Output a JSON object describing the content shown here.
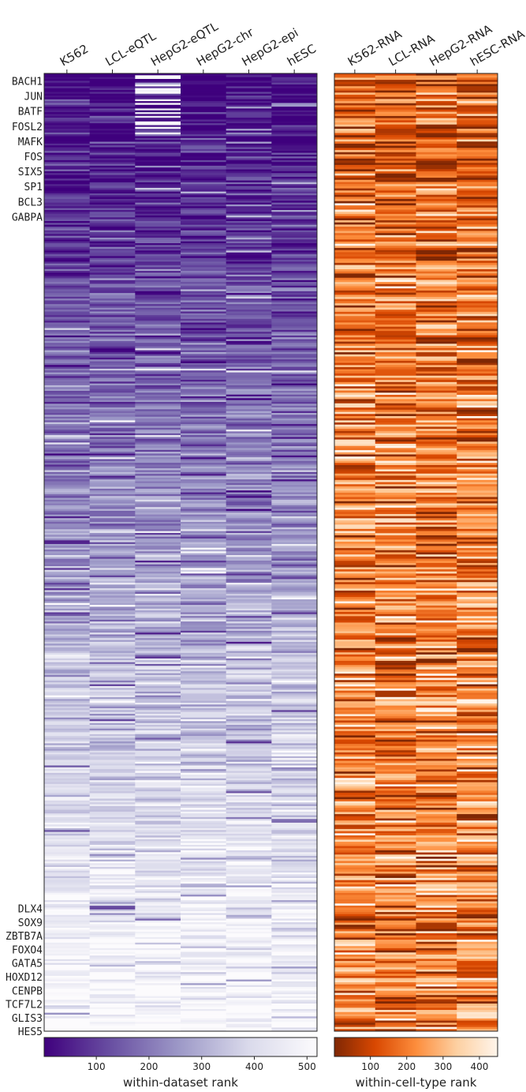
{
  "chart_data": [
    {
      "type": "heatmap",
      "columns": [
        "K562",
        "LCL-eQTL",
        "HepG2-eQTL",
        "HepG2-chr",
        "HepG2-epi",
        "hESC"
      ],
      "top_row_labels": [
        "BACH1",
        "JUN",
        "BATF",
        "FOSL2",
        "MAFK",
        "FOS",
        "SIX5",
        "SP1",
        "BCL3",
        "GABPA"
      ],
      "bottom_row_labels": [
        "DLX4",
        "SOX9",
        "ZBTB7A",
        "FOXO4",
        "GATA5",
        "HOXD12",
        "CENPB",
        "TCF7L2",
        "GLIS3",
        "HES5"
      ],
      "n_rows": 519,
      "colormap": "Purples_r",
      "colors": {
        "low": "#3f007d",
        "mid": "#9e9ac8",
        "high": "#fcfbfd"
      },
      "value_range": [
        1,
        519
      ],
      "colorbar": {
        "label": "within-dataset rank",
        "ticks": [
          100,
          200,
          300,
          400,
          500
        ]
      }
    },
    {
      "type": "heatmap",
      "columns": [
        "K562-RNA",
        "LCL-RNA",
        "HepG2-RNA",
        "hESC-RNA"
      ],
      "n_rows": 450,
      "colormap": "Oranges_r",
      "colors": {
        "low": "#7f2704",
        "mid": "#fd8d3c",
        "high": "#fff5eb"
      },
      "value_range": [
        1,
        450
      ],
      "colorbar": {
        "label": "within-cell-type rank",
        "ticks": [
          100,
          200,
          300,
          400
        ]
      }
    }
  ]
}
